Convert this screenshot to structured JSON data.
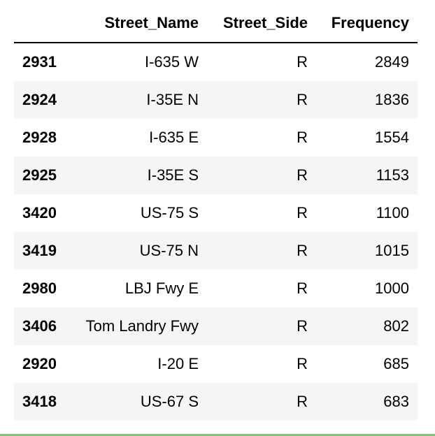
{
  "table": {
    "columns": [
      "",
      "Street_Name",
      "Street_Side",
      "Frequency"
    ],
    "rows": [
      {
        "index": "2931",
        "street_name": "I-635 W",
        "street_side": "R",
        "frequency": "2849"
      },
      {
        "index": "2924",
        "street_name": "I-35E N",
        "street_side": "R",
        "frequency": "1836"
      },
      {
        "index": "2928",
        "street_name": "I-635 E",
        "street_side": "R",
        "frequency": "1554"
      },
      {
        "index": "2925",
        "street_name": "I-35E S",
        "street_side": "R",
        "frequency": "1153"
      },
      {
        "index": "3420",
        "street_name": "US-75 S",
        "street_side": "R",
        "frequency": "1100"
      },
      {
        "index": "3419",
        "street_name": "US-75 N",
        "street_side": "R",
        "frequency": "1015"
      },
      {
        "index": "2980",
        "street_name": "LBJ Fwy E",
        "street_side": "R",
        "frequency": "1000"
      },
      {
        "index": "3406",
        "street_name": "Tom Landry Fwy",
        "street_side": "R",
        "frequency": "802"
      },
      {
        "index": "2920",
        "street_name": "I-20 E",
        "street_side": "R",
        "frequency": "685"
      },
      {
        "index": "3418",
        "street_name": "US-67 S",
        "street_side": "R",
        "frequency": "683"
      }
    ]
  },
  "colors": {
    "header_rule": "#000000",
    "stripe": "#f5f5f5",
    "cell_border_bottom": "#7cc47c"
  }
}
